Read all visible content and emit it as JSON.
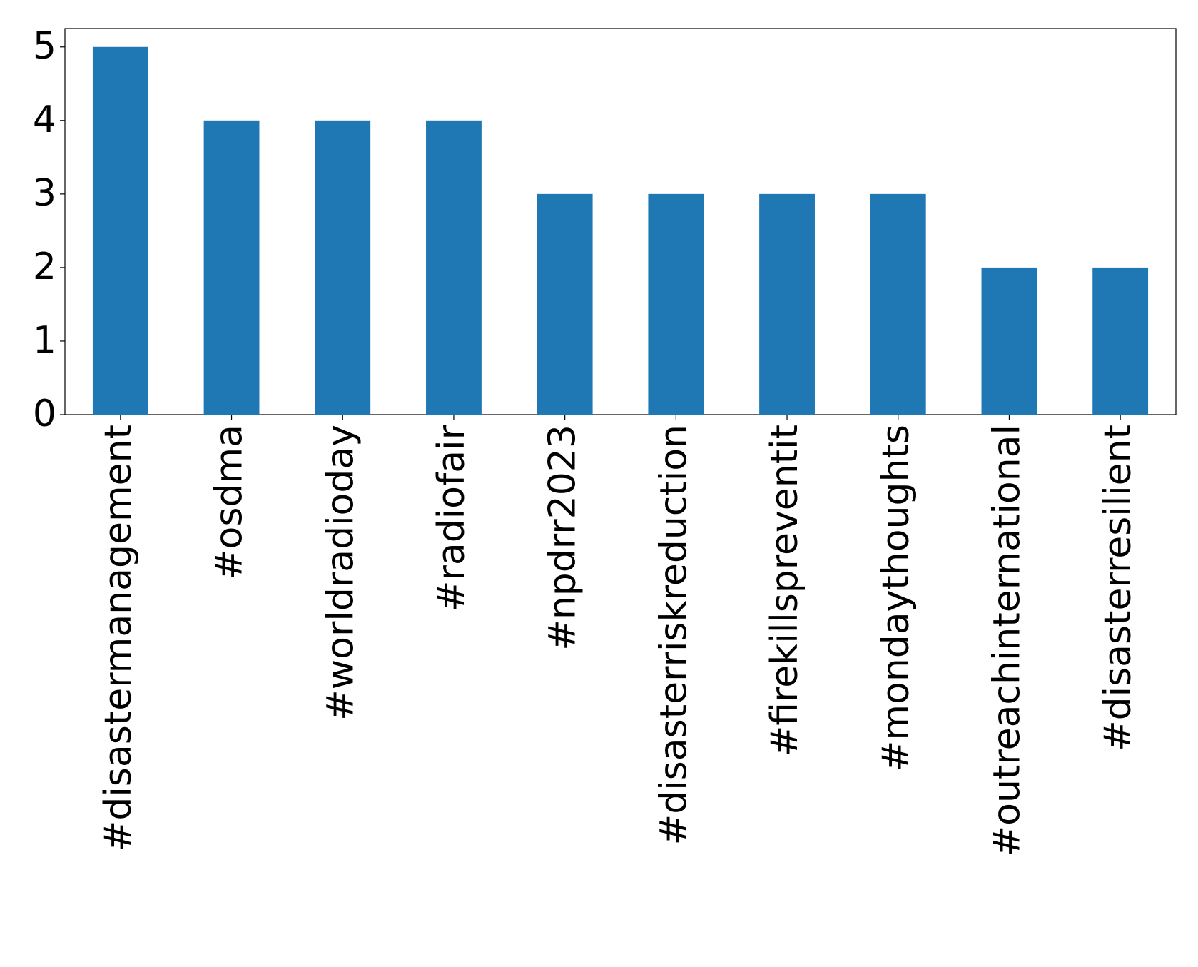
{
  "chart_data": {
    "type": "bar",
    "categories": [
      "#disastermanagement",
      "#osdma",
      "#worldradioday",
      "#radiofair",
      "#npdrr2023",
      "#disasterriskreduction",
      "#firekillspreventit",
      "#mondaythoughts",
      "#outreachinternational",
      "#disasterresilient"
    ],
    "values": [
      5,
      4,
      4,
      4,
      3,
      3,
      3,
      3,
      2,
      2
    ],
    "color": "#1f77b4",
    "ylim": [
      0,
      5.25
    ],
    "yticks": [
      0,
      1,
      2,
      3,
      4,
      5
    ],
    "grid": false
  }
}
